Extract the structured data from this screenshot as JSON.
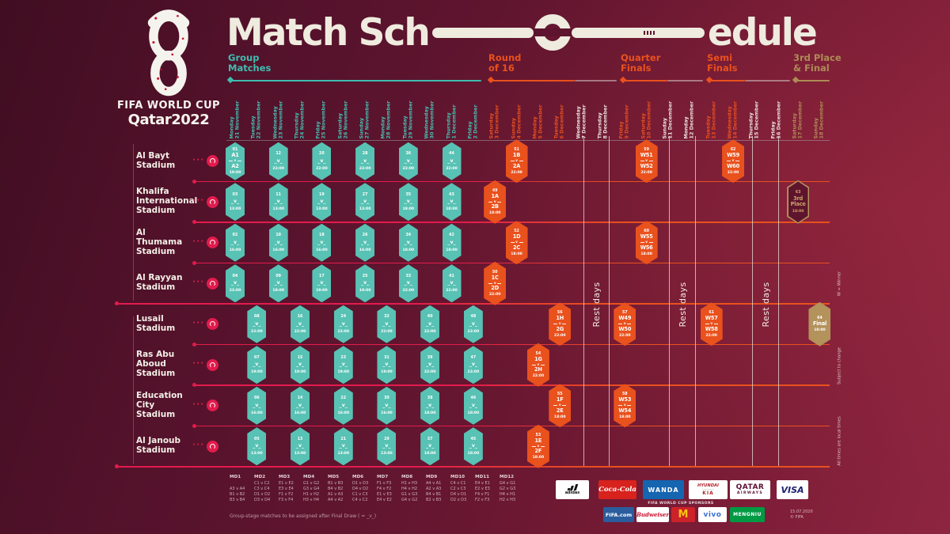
{
  "colors": {
    "teal": "#3fbdb0",
    "orange": "#e9511d",
    "gold": "#ad8c55",
    "cream": "#efebdf",
    "crimson": "#e31b4d",
    "rest_white": "#ece7e0"
  },
  "logo": {
    "brand_line1": "FIFA WORLD CUP",
    "brand_line2": "Qatar2022"
  },
  "title": {
    "part1": "Match Sch",
    "part2": "edule"
  },
  "phases": [
    {
      "id": "group",
      "label": "Group\nMatches",
      "color": "teal"
    },
    {
      "id": "r16",
      "label": "Round\nof 16",
      "color": "orange"
    },
    {
      "id": "qf",
      "label": "Quarter\nFinals",
      "color": "orange"
    },
    {
      "id": "sf",
      "label": "Semi\nFinals",
      "color": "orange"
    },
    {
      "id": "final",
      "label": "3rd Place\n& Final",
      "color": "gold"
    }
  ],
  "rest_days_label": "Rest days",
  "group_placeholder": "_v_",
  "dates": [
    {
      "day": "Monday",
      "date": "21 November",
      "phase": "group"
    },
    {
      "day": "Tuesday",
      "date": "22 November",
      "phase": "group"
    },
    {
      "day": "Wednesday",
      "date": "23 November",
      "phase": "group"
    },
    {
      "day": "Thursday",
      "date": "24 November",
      "phase": "group"
    },
    {
      "day": "Friday",
      "date": "25 November",
      "phase": "group"
    },
    {
      "day": "Saturday",
      "date": "26 November",
      "phase": "group"
    },
    {
      "day": "Sunday",
      "date": "27 November",
      "phase": "group"
    },
    {
      "day": "Monday",
      "date": "28 November",
      "phase": "group"
    },
    {
      "day": "Tuesday",
      "date": "29 November",
      "phase": "group"
    },
    {
      "day": "Wednesday",
      "date": "30 November",
      "phase": "group"
    },
    {
      "day": "Thursday",
      "date": "1 December",
      "phase": "group"
    },
    {
      "day": "Friday",
      "date": "2 December",
      "phase": "group"
    },
    {
      "day": "Saturday",
      "date": "3 December",
      "phase": "knockout"
    },
    {
      "day": "Sunday",
      "date": "4 December",
      "phase": "knockout"
    },
    {
      "day": "Monday",
      "date": "5 December",
      "phase": "knockout"
    },
    {
      "day": "Tuesday",
      "date": "6 December",
      "phase": "knockout"
    },
    {
      "day": "Wednesday",
      "date": "7 December",
      "phase": "rest"
    },
    {
      "day": "Thursday",
      "date": "8 December",
      "phase": "rest"
    },
    {
      "day": "Friday",
      "date": "9 December",
      "phase": "knockout"
    },
    {
      "day": "Saturday",
      "date": "10 December",
      "phase": "knockout"
    },
    {
      "day": "Sunday",
      "date": "11 December",
      "phase": "rest"
    },
    {
      "day": "Monday",
      "date": "12 December",
      "phase": "rest"
    },
    {
      "day": "Tuesday",
      "date": "13 December",
      "phase": "knockout"
    },
    {
      "day": "Wednesday",
      "date": "14 December",
      "phase": "knockout"
    },
    {
      "day": "Thursday",
      "date": "15 December",
      "phase": "rest"
    },
    {
      "day": "Friday",
      "date": "16 December",
      "phase": "rest"
    },
    {
      "day": "Saturday",
      "date": "17 December",
      "phase": "final"
    },
    {
      "day": "Sunday",
      "date": "18 December",
      "phase": "final"
    }
  ],
  "stadiums": [
    {
      "name": "Al Bayt\nStadium",
      "matches": [
        {
          "type": "group",
          "col": 1,
          "number": "01",
          "top": "A1",
          "bottom": "A2",
          "time": "19:00"
        },
        {
          "type": "group",
          "col": 3,
          "number": "12",
          "time": "22:00"
        },
        {
          "type": "group",
          "col": 5,
          "number": "20",
          "time": "22:00"
        },
        {
          "type": "group",
          "col": 7,
          "number": "28",
          "time": "22:00"
        },
        {
          "type": "group",
          "col": 9,
          "number": "36",
          "time": "22:00"
        },
        {
          "type": "group",
          "col": 11,
          "number": "44",
          "time": "22:00"
        },
        {
          "type": "r16",
          "col": 14,
          "number": "51",
          "top": "1B",
          "bottom": "2A",
          "time": "22:00"
        },
        {
          "type": "qf",
          "col": 20,
          "number": "59",
          "top": "W51",
          "bottom": "W52",
          "time": "22:00"
        },
        {
          "type": "sf",
          "col": 24,
          "number": "62",
          "top": "W59",
          "bottom": "W60",
          "time": "22:00"
        }
      ]
    },
    {
      "name": "Khalifa\nInternational\nStadium",
      "matches": [
        {
          "type": "group",
          "col": 1,
          "number": "03",
          "time": "13:00"
        },
        {
          "type": "group",
          "col": 3,
          "number": "11",
          "time": "13:00"
        },
        {
          "type": "group",
          "col": 5,
          "number": "19",
          "time": "13:00"
        },
        {
          "type": "group",
          "col": 7,
          "number": "27",
          "time": "13:00"
        },
        {
          "type": "group",
          "col": 9,
          "number": "35",
          "time": "18:00"
        },
        {
          "type": "group",
          "col": 11,
          "number": "43",
          "time": "18:00"
        },
        {
          "type": "r16",
          "col": 13,
          "number": "49",
          "top": "1A",
          "bottom": "2B",
          "time": "18:00"
        },
        {
          "type": "third",
          "col": 27,
          "number": "63",
          "top": "3rd",
          "bottom": "Place",
          "time": "18:00"
        }
      ]
    },
    {
      "name": "Al\nThumama\nStadium",
      "matches": [
        {
          "type": "group",
          "col": 1,
          "number": "02",
          "time": "16:00"
        },
        {
          "type": "group",
          "col": 3,
          "number": "10",
          "time": "16:00"
        },
        {
          "type": "group",
          "col": 5,
          "number": "18",
          "time": "16:00"
        },
        {
          "type": "group",
          "col": 7,
          "number": "26",
          "time": "16:00"
        },
        {
          "type": "group",
          "col": 9,
          "number": "34",
          "time": "18:00"
        },
        {
          "type": "group",
          "col": 11,
          "number": "42",
          "time": "18:00"
        },
        {
          "type": "r16",
          "col": 14,
          "number": "52",
          "top": "1D",
          "bottom": "2C",
          "time": "18:00"
        },
        {
          "type": "qf",
          "col": 20,
          "number": "60",
          "top": "W55",
          "bottom": "W56",
          "time": "18:00"
        }
      ]
    },
    {
      "name": "Al Rayyan\nStadium",
      "matches": [
        {
          "type": "group",
          "col": 1,
          "number": "04",
          "time": "22:00"
        },
        {
          "type": "group",
          "col": 3,
          "number": "09",
          "time": "19:00"
        },
        {
          "type": "group",
          "col": 5,
          "number": "17",
          "time": "19:00"
        },
        {
          "type": "group",
          "col": 7,
          "number": "25",
          "time": "19:00"
        },
        {
          "type": "group",
          "col": 9,
          "number": "33",
          "time": "22:00"
        },
        {
          "type": "group",
          "col": 11,
          "number": "41",
          "time": "22:00"
        },
        {
          "type": "r16",
          "col": 13,
          "number": "50",
          "top": "1C",
          "bottom": "2D",
          "time": "22:00"
        }
      ]
    },
    {
      "name": "Lusail\nStadium",
      "matches": [
        {
          "type": "group",
          "col": 2,
          "number": "08",
          "time": "22:00"
        },
        {
          "type": "group",
          "col": 4,
          "number": "16",
          "time": "22:00"
        },
        {
          "type": "group",
          "col": 6,
          "number": "24",
          "time": "22:00"
        },
        {
          "type": "group",
          "col": 8,
          "number": "32",
          "time": "22:00"
        },
        {
          "type": "group",
          "col": 10,
          "number": "40",
          "time": "22:00"
        },
        {
          "type": "group",
          "col": 12,
          "number": "48",
          "time": "22:00"
        },
        {
          "type": "r16",
          "col": 16,
          "number": "56",
          "top": "1H",
          "bottom": "2G",
          "time": "22:00"
        },
        {
          "type": "qf",
          "col": 19,
          "number": "57",
          "top": "W49",
          "bottom": "W50",
          "time": "22:00"
        },
        {
          "type": "sf",
          "col": 23,
          "number": "61",
          "top": "W57",
          "bottom": "W58",
          "time": "22:00"
        },
        {
          "type": "final",
          "col": 28,
          "number": "64",
          "top": "Final",
          "time": "18:00"
        }
      ]
    },
    {
      "name": "Ras Abu\nAboud\nStadium",
      "matches": [
        {
          "type": "group",
          "col": 2,
          "number": "07",
          "time": "19:00"
        },
        {
          "type": "group",
          "col": 4,
          "number": "15",
          "time": "19:00"
        },
        {
          "type": "group",
          "col": 6,
          "number": "23",
          "time": "19:00"
        },
        {
          "type": "group",
          "col": 8,
          "number": "31",
          "time": "19:00"
        },
        {
          "type": "group",
          "col": 10,
          "number": "39",
          "time": "22:00"
        },
        {
          "type": "group",
          "col": 12,
          "number": "47",
          "time": "22:00"
        },
        {
          "type": "r16",
          "col": 15,
          "number": "54",
          "top": "1G",
          "bottom": "2H",
          "time": "22:00"
        }
      ]
    },
    {
      "name": "Education\nCity\nStadium",
      "matches": [
        {
          "type": "group",
          "col": 2,
          "number": "06",
          "time": "16:00"
        },
        {
          "type": "group",
          "col": 4,
          "number": "14",
          "time": "16:00"
        },
        {
          "type": "group",
          "col": 6,
          "number": "22",
          "time": "16:00"
        },
        {
          "type": "group",
          "col": 8,
          "number": "30",
          "time": "16:00"
        },
        {
          "type": "group",
          "col": 10,
          "number": "38",
          "time": "18:00"
        },
        {
          "type": "group",
          "col": 12,
          "number": "46",
          "time": "18:00"
        },
        {
          "type": "r16",
          "col": 16,
          "number": "55",
          "top": "1F",
          "bottom": "2E",
          "time": "18:00"
        },
        {
          "type": "qf",
          "col": 19,
          "number": "58",
          "top": "W53",
          "bottom": "W54",
          "time": "18:00"
        }
      ]
    },
    {
      "name": "Al Janoub\nStadium",
      "matches": [
        {
          "type": "group",
          "col": 2,
          "number": "05",
          "time": "13:00"
        },
        {
          "type": "group",
          "col": 4,
          "number": "13",
          "time": "13:00"
        },
        {
          "type": "group",
          "col": 6,
          "number": "21",
          "time": "13:00"
        },
        {
          "type": "group",
          "col": 8,
          "number": "29",
          "time": "13:00"
        },
        {
          "type": "group",
          "col": 10,
          "number": "37",
          "time": "18:00"
        },
        {
          "type": "group",
          "col": 12,
          "number": "45",
          "time": "18:00"
        },
        {
          "type": "r16",
          "col": 15,
          "number": "53",
          "top": "1E",
          "bottom": "2F",
          "time": "18:00"
        }
      ]
    }
  ],
  "side_notes": [
    "W = Winner",
    "Subject to change",
    "All times are local times"
  ],
  "legend": {
    "headers": [
      "MD1",
      "MD2",
      "MD3",
      "MD4",
      "MD5",
      "MD6",
      "MD7",
      "MD8",
      "MD9",
      "MD10",
      "MD11",
      "MD12"
    ],
    "columns": [
      [
        "",
        "A3 v A4",
        "B1 v B2",
        "B3 v B4"
      ],
      [
        "C1 v C2",
        "C3 v C4",
        "D1 v D2",
        "D3 v D4"
      ],
      [
        "E1 v E2",
        "E3 v E4",
        "F1 v F2",
        "F3 v F4"
      ],
      [
        "G1 v G2",
        "G3 v G4",
        "H1 v H2",
        "H3 v H4"
      ],
      [
        "B1 v B3",
        "B4 v B2",
        "A1 v A3",
        "A4 v A2"
      ],
      [
        "D1 v D3",
        "D4 v D2",
        "C1 v C3",
        "C4 v C2"
      ],
      [
        "F1 v F3",
        "F4 v F2",
        "E1 v E3",
        "E4 v E2"
      ],
      [
        "H1 v H3",
        "H4 v H2",
        "G1 v G3",
        "G4 v G2"
      ],
      [
        "A4 v A1",
        "A2 v A3",
        "B4 v B1",
        "B2 v B3"
      ],
      [
        "C4 v C1",
        "C2 v C3",
        "D4 v D1",
        "D2 v D3"
      ],
      [
        "E4 v E1",
        "E2 v E3",
        "F4 v F1",
        "F2 v F3"
      ],
      [
        "G4 v G1",
        "G2 v G3",
        "H4 v H1",
        "H2 v H3"
      ]
    ]
  },
  "legend_note": "Group-stage matches to be assigned after Final Draw ( = _v_)",
  "sponsors": {
    "partners": [
      "adidas",
      "Coca-Cola",
      "WANDA",
      "HYUNDAI",
      "KIA",
      "QATAR AIRWAYS",
      "VISA"
    ],
    "sponsors_label": "FIFA WORLD CUP SPONSORS",
    "sponsors": [
      "FIFA.com",
      "Budweiser",
      "M",
      "vivo",
      "MENGNIU"
    ],
    "issued": "15.07.2020",
    "copyright": "© FIFA"
  }
}
